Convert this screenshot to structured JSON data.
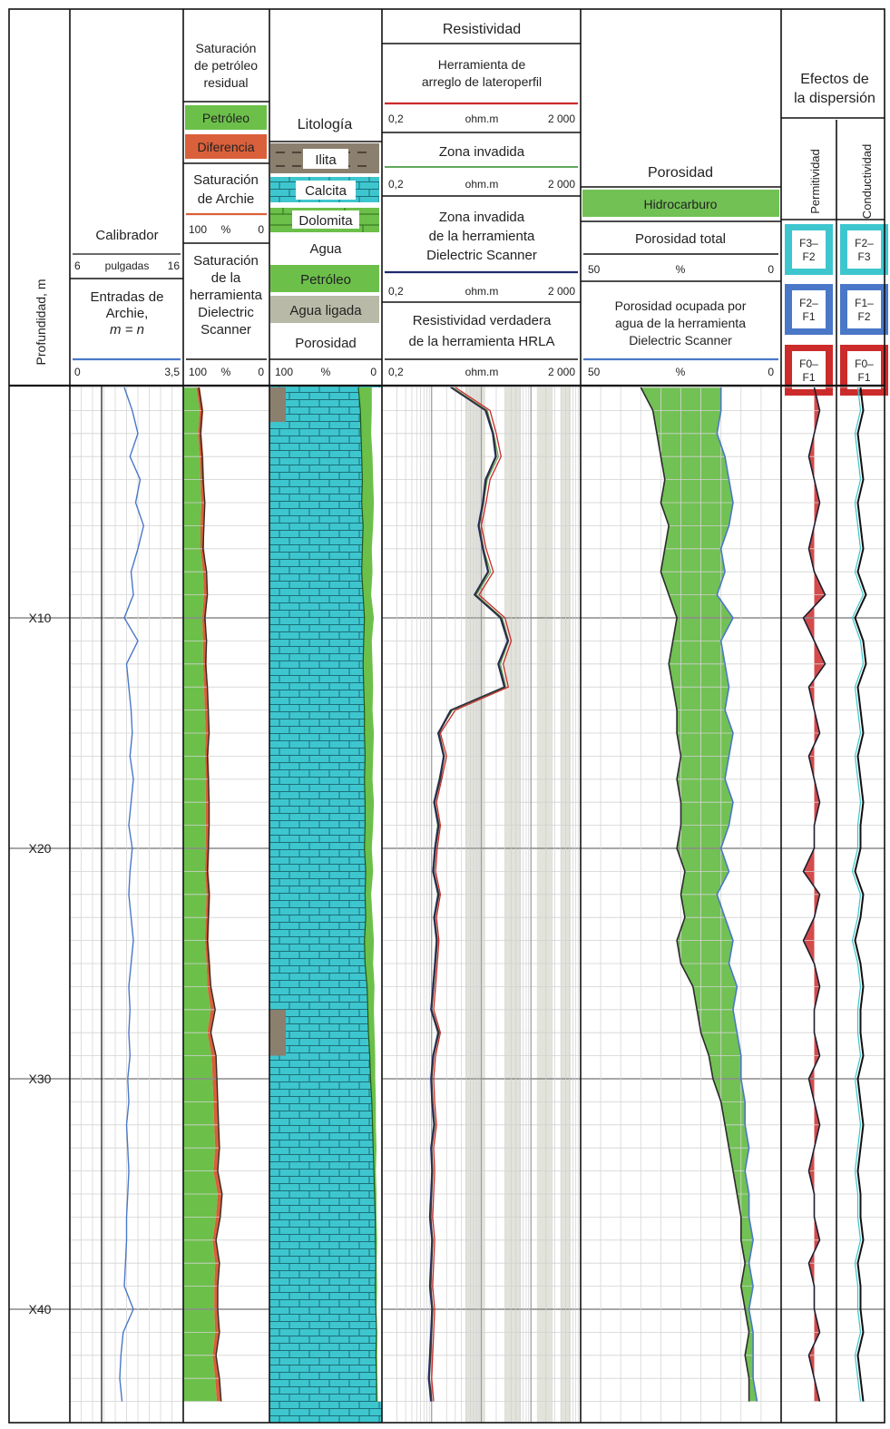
{
  "colors": {
    "calcite": "#3ec6cf",
    "oil_green": "#6cc04a",
    "difference_red": "#d9603b",
    "bound_water": "#b9b9a7",
    "illite": "#8b7f6e",
    "hydrocarbon_green": "#72c154",
    "blue_curve": "#4a78c8",
    "red_curve": "#cc2b2b",
    "dark_navy": "#1f2a6b",
    "frame": "#111111",
    "grid": "#b9b9b9"
  },
  "depth_track": {
    "title": "Profundidad, m",
    "labels": [
      "X10",
      "X20",
      "X30",
      "X40"
    ]
  },
  "caliper_track": {
    "caliper_label": "Calibrador",
    "caliper_scale": [
      "6",
      "pulgadas",
      "16"
    ],
    "archie_label": [
      "Entradas de",
      "Archie,",
      "m = n"
    ],
    "archie_scale": [
      "0",
      "3,5"
    ]
  },
  "saturation_track": {
    "residual_title": [
      "Saturación",
      "de petróleo",
      "residual"
    ],
    "oil": "Petróleo",
    "difference": "Diferencia",
    "archie_title": [
      "Saturación",
      "de Archie"
    ],
    "archie_scale": [
      "100",
      "%",
      "0"
    ],
    "dielectric_title": [
      "Saturación",
      "de la",
      "herramienta",
      "Dielectric",
      "Scanner"
    ],
    "dielectric_scale": [
      "100",
      "%",
      "0"
    ]
  },
  "lithology_track": {
    "title": "Litología",
    "items": [
      "Ilita",
      "Calcita",
      "Dolomita",
      "Agua",
      "Petróleo",
      "Agua ligada",
      "Porosidad"
    ],
    "scale": [
      "100",
      "%",
      "0"
    ]
  },
  "resistivity_track": {
    "title": "Resistividad",
    "array_title": [
      "Herramienta de",
      "arreglo de lateroperfil"
    ],
    "scale_1": [
      "0,2",
      "ohm.m",
      "2 000"
    ],
    "invaded_title": "Zona invadida",
    "scale_2": [
      "0,2",
      "ohm.m",
      "2 000"
    ],
    "dielectric_title": [
      "Zona invadida",
      "de la herramienta",
      "Dielectric Scanner"
    ],
    "scale_3": [
      "0,2",
      "ohm.m",
      "2 000"
    ],
    "hrla_title": [
      "Resistividad verdadera",
      "de la herramienta HRLA"
    ],
    "scale_4": [
      "0,2",
      "ohm.m",
      "2 000"
    ]
  },
  "porosity_track": {
    "title": "Porosidad",
    "hydrocarbon": "Hidrocarburo",
    "total": "Porosidad total",
    "scale_1": [
      "50",
      "%",
      "0"
    ],
    "water_title": [
      "Porosidad ocupada por",
      "agua de la herramienta",
      "Dielectric Scanner"
    ],
    "scale_2": [
      "50",
      "%",
      "0"
    ]
  },
  "dispersion_track": {
    "title": [
      "Efectos de",
      "la dispersión"
    ],
    "permittivity": "Permitividad",
    "conductivity": "Conductividad",
    "permittivity_boxes": [
      [
        "F3–",
        "F2"
      ],
      [
        "F2–",
        "F1"
      ],
      [
        "F0–",
        "F1"
      ]
    ],
    "conductivity_boxes": [
      [
        "F2–",
        "F3"
      ],
      [
        "F1–",
        "F2"
      ],
      [
        "F0–",
        "F1"
      ]
    ]
  },
  "chart_data": {
    "type": "line",
    "title": "",
    "y_axis": "Profundidad, m",
    "depth_ticks": [
      "X10",
      "X20",
      "X30",
      "X40"
    ],
    "depth_tick_values": [
      10,
      20,
      30,
      40
    ],
    "ylim": [
      0,
      44
    ],
    "depth": [
      0,
      1,
      2,
      3,
      4,
      5,
      6,
      7,
      8,
      9,
      10,
      11,
      12,
      13,
      14,
      15,
      16,
      17,
      18,
      19,
      20,
      21,
      22,
      23,
      24,
      25,
      26,
      27,
      28,
      29,
      30,
      31,
      32,
      33,
      34,
      35,
      36,
      37,
      38,
      39,
      40,
      41,
      42,
      43,
      44
    ],
    "caliper_in": [
      10.8,
      11.5,
      12.0,
      11.3,
      12.2,
      11.8,
      12.5,
      12.0,
      11.4,
      11.6,
      10.8,
      12.0,
      11.0,
      11.2,
      11.4,
      11.5,
      11.3,
      11.6,
      11.4,
      11.2,
      11.5,
      11.3,
      11.2,
      11.4,
      11.6,
      11.4,
      11.2,
      11.3,
      11.2,
      11.3,
      11.1,
      11.2,
      11.0,
      11.1,
      11.2,
      11.1,
      11.0,
      11.0,
      10.9,
      10.8,
      11.6,
      10.7,
      10.5,
      10.4,
      10.6
    ],
    "archie_saturation_pct": [
      82,
      78,
      80,
      78,
      77,
      75,
      76,
      77,
      73,
      72,
      75,
      73,
      74,
      72,
      71,
      70,
      72,
      71,
      70,
      70,
      71,
      72,
      70,
      71,
      72,
      70,
      68,
      63,
      68,
      62,
      61,
      60,
      59,
      58,
      60,
      55,
      57,
      62,
      58,
      60,
      60,
      58,
      62,
      58,
      56
    ],
    "dielectric_saturation_pct": [
      85,
      81,
      83,
      81,
      80,
      79,
      80,
      80,
      77,
      76,
      78,
      77,
      77,
      76,
      75,
      74,
      75,
      74,
      74,
      74,
      74,
      75,
      73,
      74,
      75,
      73,
      72,
      68,
      72,
      67,
      66,
      65,
      64,
      63,
      65,
      60,
      62,
      66,
      63,
      64,
      64,
      63,
      66,
      63,
      61
    ],
    "resistivity_array_ohmm": [
      6,
      30,
      40,
      50,
      30,
      25,
      20,
      25,
      35,
      18,
      60,
      80,
      55,
      70,
      6,
      3,
      4,
      3.2,
      2.5,
      3,
      2.6,
      2.4,
      3,
      2.5,
      2.8,
      2.6,
      2.4,
      2.2,
      3,
      2.4,
      2.2,
      2.3,
      2.5,
      2.2,
      2.3,
      2.2,
      2.1,
      2.3,
      2.2,
      2.1,
      2.3,
      2.2,
      2.1,
      2.0,
      2.2
    ],
    "resistivity_hrla_ohmm": [
      5,
      25,
      35,
      40,
      25,
      22,
      18,
      22,
      28,
      15,
      50,
      70,
      45,
      60,
      5,
      2.8,
      3.6,
      3,
      2.3,
      2.8,
      2.4,
      2.2,
      2.8,
      2.3,
      2.6,
      2.4,
      2.2,
      2,
      2.8,
      2.2,
      2,
      2.1,
      2.3,
      2,
      2.1,
      2,
      1.9,
      2.1,
      2,
      1.9,
      2.1,
      2,
      1.9,
      1.8,
      2
    ],
    "total_porosity_pct": [
      35,
      32,
      31,
      30,
      29,
      30,
      28,
      29,
      30,
      28,
      26,
      27,
      28,
      27,
      26,
      26,
      25,
      26,
      25,
      25,
      26,
      24,
      25,
      24,
      26,
      25,
      22,
      21,
      20,
      18,
      17,
      15,
      14,
      13,
      12,
      11,
      10,
      10,
      9,
      10,
      9,
      8,
      9,
      8,
      8
    ],
    "water_porosity_pct": [
      15,
      15,
      16,
      14,
      13,
      12,
      13,
      15,
      14,
      16,
      12,
      15,
      14,
      13,
      14,
      12,
      13,
      14,
      12,
      13,
      15,
      13,
      16,
      14,
      12,
      13,
      11,
      12,
      11,
      10,
      10,
      9,
      9,
      8,
      9,
      8,
      8,
      7,
      8,
      7,
      8,
      7,
      7,
      7,
      6
    ],
    "permittivity_dispersion": [
      0.0,
      0.1,
      0.0,
      -0.1,
      0.0,
      0.1,
      0.0,
      -0.1,
      0.0,
      0.2,
      -0.2,
      0.0,
      0.2,
      -0.1,
      0.0,
      0.1,
      -0.1,
      0.0,
      0.1,
      0.0,
      0.0,
      -0.2,
      0.1,
      0.0,
      -0.2,
      0.0,
      0.1,
      0.0,
      0.0,
      0.1,
      -0.1,
      0.0,
      0.1,
      0.0,
      -0.1,
      0.0,
      0.0,
      0.1,
      -0.1,
      0.0,
      0.0,
      0.1,
      -0.1,
      0.0,
      0.1
    ],
    "conductivity_dispersion": [
      0.0,
      0.05,
      -0.05,
      0.0,
      0.05,
      -0.05,
      0.0,
      0.05,
      -0.05,
      0.1,
      -0.1,
      0.05,
      0.1,
      -0.05,
      0.0,
      0.05,
      -0.05,
      0.0,
      0.05,
      0.0,
      0.0,
      -0.1,
      0.05,
      0.0,
      -0.1,
      0.0,
      0.05,
      0.0,
      0.0,
      0.05,
      -0.05,
      0.0,
      0.05,
      0.0,
      -0.05,
      0.0,
      0.0,
      0.05,
      -0.05,
      0.0,
      0.0,
      0.05,
      -0.05,
      0.0,
      0.05
    ]
  }
}
